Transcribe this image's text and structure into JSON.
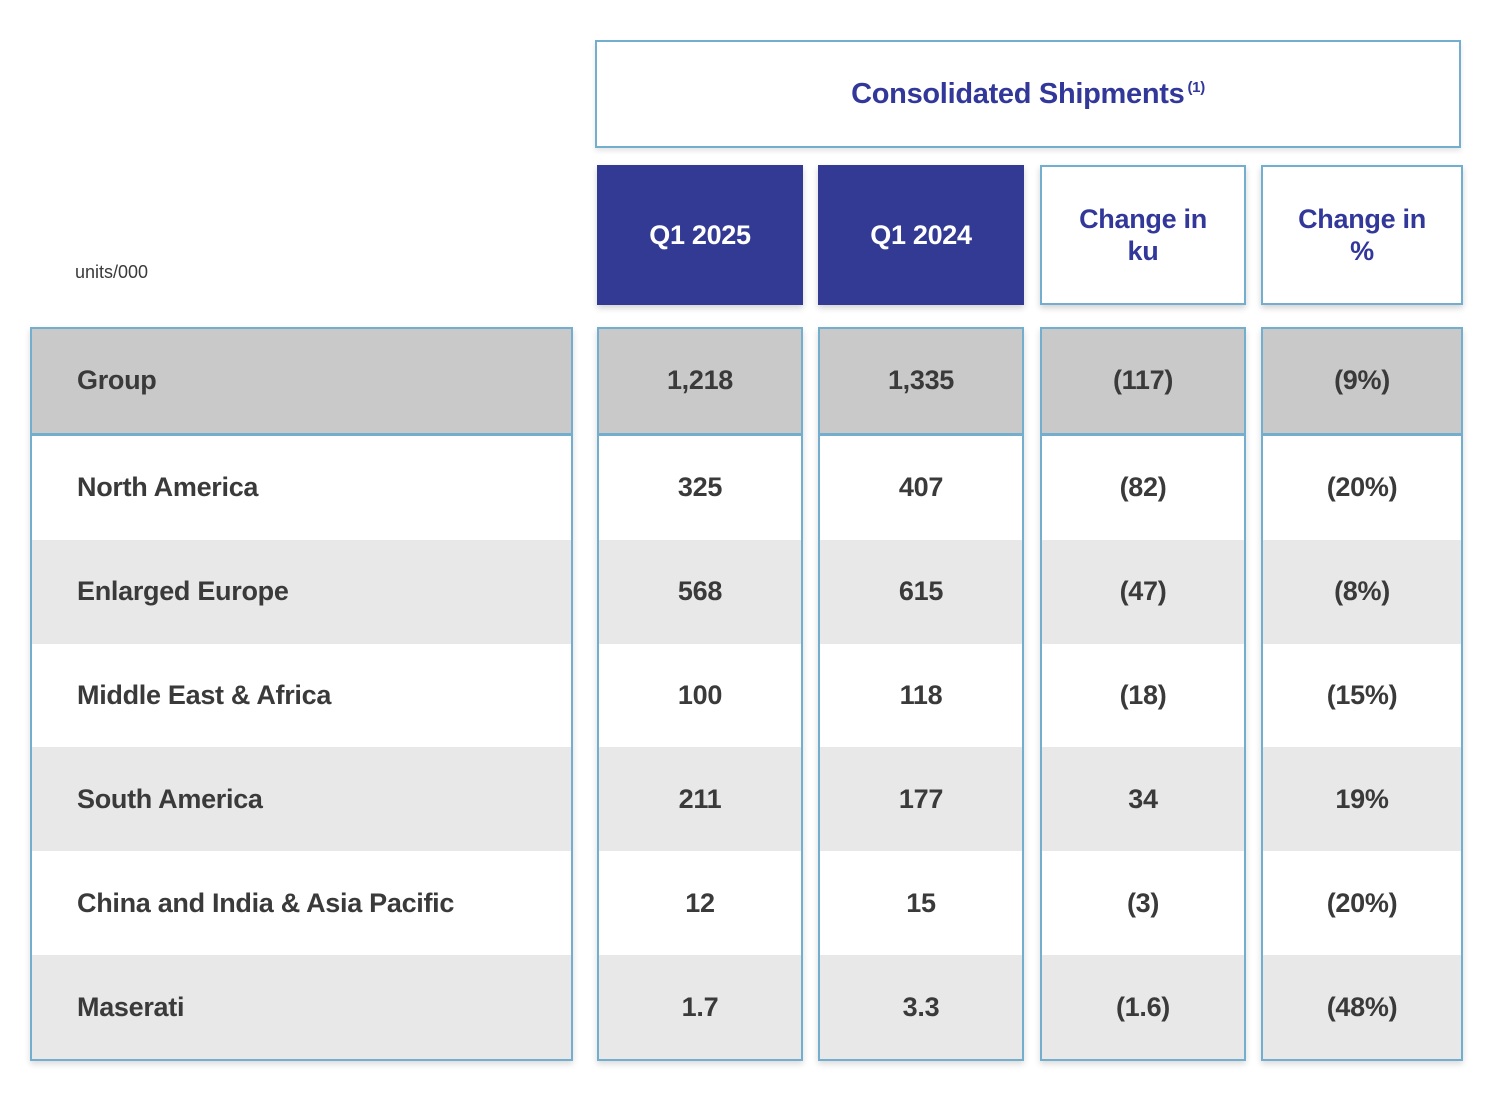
{
  "table": {
    "units_label": "units/000",
    "header": {
      "title": "Consolidated Shipments",
      "title_superscript": "(1)"
    },
    "columns": [
      {
        "label": "Q1 2025",
        "style": "solid"
      },
      {
        "label": "Q1 2024",
        "style": "solid"
      },
      {
        "label": "Change in\nku",
        "style": "outline"
      },
      {
        "label": "Change in\n%",
        "style": "outline"
      }
    ],
    "rows": [
      {
        "label": "Group",
        "values": [
          "1,218",
          "1,335",
          "(117)",
          "(9%)"
        ]
      },
      {
        "label": "North America",
        "values": [
          "325",
          "407",
          "(82)",
          "(20%)"
        ]
      },
      {
        "label": "Enlarged Europe",
        "values": [
          "568",
          "615",
          "(47)",
          "(8%)"
        ]
      },
      {
        "label": "Middle East & Africa",
        "values": [
          "100",
          "118",
          "(18)",
          "(15%)"
        ]
      },
      {
        "label": "South America",
        "values": [
          "211",
          "177",
          "34",
          "19%"
        ]
      },
      {
        "label": "China and India & Asia Pacific",
        "values": [
          "12",
          "15",
          "(3)",
          "(20%)"
        ]
      },
      {
        "label": "Maserati",
        "values": [
          "1.7",
          "3.3",
          "(1.6)",
          "(48%)"
        ]
      }
    ],
    "colors": {
      "header_fill": "#333a94",
      "header_text": "#ffffff",
      "accent_blue": "#32379a",
      "border_blue": "#74aecf",
      "group_row_bg": "#c9c9c9",
      "alt_row_bg": "#e8e8e8",
      "text_dark": "#3a3a3a"
    }
  },
  "chart_data": {
    "type": "table",
    "title": "Consolidated Shipments (1)",
    "unit": "units/000",
    "categories": [
      "Group",
      "North America",
      "Enlarged Europe",
      "Middle East & Africa",
      "South America",
      "China and India & Asia Pacific",
      "Maserati"
    ],
    "series": [
      {
        "name": "Q1 2025",
        "values": [
          1218,
          325,
          568,
          100,
          211,
          12,
          1.7
        ]
      },
      {
        "name": "Q1 2024",
        "values": [
          1335,
          407,
          615,
          118,
          177,
          15,
          3.3
        ]
      },
      {
        "name": "Change in ku",
        "values": [
          -117,
          -82,
          -47,
          -18,
          34,
          -3,
          -1.6
        ]
      },
      {
        "name": "Change in %",
        "values": [
          -9,
          -20,
          -8,
          -15,
          19,
          -20,
          -48
        ]
      }
    ]
  }
}
